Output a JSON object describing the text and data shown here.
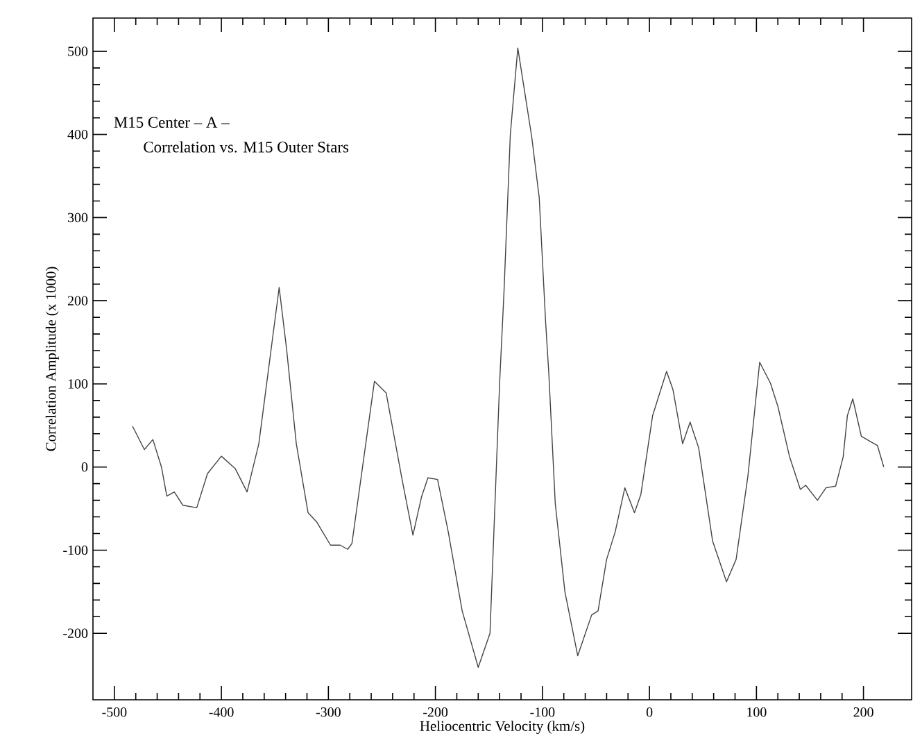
{
  "chart_data": {
    "type": "line",
    "xlabel": "Heliocentric Velocity (km/s)",
    "ylabel": "Correlation Amplitude (x 1000)",
    "annotations": [
      "M15 Center – A –",
      "Correlation vs. M15 Outer Stars"
    ],
    "xlim": [
      -520,
      245
    ],
    "ylim": [
      -280,
      540
    ],
    "xticks": [
      -500,
      -400,
      -300,
      -200,
      -100,
      0,
      100,
      200
    ],
    "yticks": [
      -200,
      -100,
      0,
      100,
      200,
      300,
      400,
      500
    ],
    "marker": "none",
    "line_style": "solid",
    "grid": false,
    "series": [
      {
        "color": "#444444",
        "x": [
          -483,
          -472,
          -464,
          -456,
          -451,
          -444,
          -436,
          -423,
          -413,
          -400,
          -387,
          -376,
          -365,
          -346,
          -339,
          -330,
          -319,
          -311,
          -298,
          -289,
          -282,
          -278,
          -257,
          -246,
          -231,
          -221,
          -213,
          -207,
          -198,
          -188,
          -175,
          -160,
          -149,
          -140,
          -136,
          -130,
          -123,
          -110,
          -103,
          -97,
          -94,
          -88,
          -79,
          -67,
          -54,
          -48,
          -40,
          -32,
          -23,
          -14,
          -8,
          3,
          16,
          22,
          31,
          38,
          46,
          59,
          72,
          81,
          92,
          103,
          113,
          120,
          131,
          141,
          146,
          157,
          165,
          174,
          181,
          185,
          190,
          198,
          206,
          213,
          219
        ],
        "values": [
          49,
          21,
          33,
          0,
          -35,
          -30,
          -46,
          -49,
          -8,
          13,
          -2,
          -30,
          28,
          216,
          141,
          28,
          -55,
          -66,
          -94,
          -94,
          -99,
          -92,
          103,
          89,
          -16,
          -82,
          -36,
          -13,
          -15,
          -78,
          -173,
          -241,
          -200,
          101,
          208,
          400,
          504,
          397,
          324,
          174,
          112,
          -44,
          -150,
          -227,
          -178,
          -173,
          -111,
          -78,
          -25,
          -55,
          -33,
          62,
          115,
          93,
          28,
          54,
          23,
          -89,
          -138,
          -111,
          -11,
          126,
          101,
          73,
          12,
          -27,
          -22,
          -40,
          -25,
          -23,
          12,
          62,
          82,
          37,
          31,
          26,
          0
        ]
      }
    ]
  }
}
